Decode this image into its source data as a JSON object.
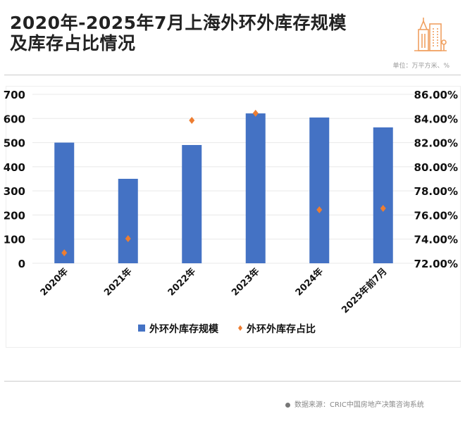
{
  "header": {
    "title_line1": "2020年-2025年7月上海外环外库存规模",
    "title_line2": "及库存占比情况",
    "unit": "单位：万平方米、%",
    "logo_icon": "building-icon"
  },
  "footer": {
    "source": "数据来源：CRIC中国房地产决策咨询系统"
  },
  "colors": {
    "bar": "#4472C4",
    "marker": "#ED7D31",
    "accent": "#F0A060"
  },
  "chart_data": {
    "type": "bar",
    "categories": [
      "2020年",
      "2021年",
      "2022年",
      "2023年",
      "2024年",
      "2025年前7月"
    ],
    "series": [
      {
        "name": "外环外库存规模",
        "type": "bar",
        "axis": "left",
        "values": [
          500,
          350,
          490,
          621,
          604,
          563
        ]
      },
      {
        "name": "外环外库存占比",
        "type": "scatter",
        "axis": "right",
        "values": [
          72.87,
          74.04,
          83.84,
          84.43,
          76.43,
          76.55
        ]
      }
    ],
    "y_left": {
      "ylim": [
        0,
        700
      ],
      "ticks": [
        "0",
        "100",
        "200",
        "300",
        "400",
        "500",
        "600",
        "700"
      ]
    },
    "y_right": {
      "ylim": [
        72,
        86
      ],
      "ticks": [
        "72.00%",
        "74.00%",
        "76.00%",
        "78.00%",
        "80.00%",
        "82.00%",
        "84.00%",
        "86.00%"
      ]
    },
    "grid": true,
    "legend": "bottom"
  }
}
